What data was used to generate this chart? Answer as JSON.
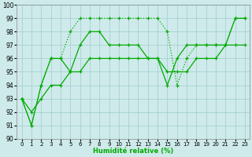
{
  "xlabel": "Humidité relative (%)",
  "xlim": [
    -0.5,
    23.5
  ],
  "ylim": [
    90,
    100
  ],
  "yticks": [
    90,
    91,
    92,
    93,
    94,
    95,
    96,
    97,
    98,
    99,
    100
  ],
  "xticks": [
    0,
    1,
    2,
    3,
    4,
    5,
    6,
    7,
    8,
    9,
    10,
    11,
    12,
    13,
    14,
    15,
    16,
    17,
    18,
    19,
    20,
    21,
    22,
    23
  ],
  "bg_color": "#ceeaea",
  "grid_color": "#a0cccc",
  "line_color": "#00aa00",
  "line1_dotted": {
    "x": [
      0,
      1,
      2,
      3,
      4,
      5,
      6,
      7,
      8,
      9,
      10,
      11,
      12,
      13,
      14,
      15,
      16,
      17,
      18,
      19,
      20,
      21,
      22,
      23
    ],
    "y": [
      93,
      91,
      94,
      96,
      96,
      98,
      99,
      99,
      99,
      99,
      99,
      99,
      99,
      99,
      99,
      98,
      94,
      96,
      97,
      97,
      97,
      97,
      99,
      99
    ]
  },
  "line2_solid": {
    "x": [
      0,
      1,
      2,
      3,
      4,
      5,
      6,
      7,
      8,
      9,
      10,
      11,
      12,
      13,
      14,
      15,
      16,
      17,
      18,
      19,
      20,
      21,
      22,
      23
    ],
    "y": [
      93,
      91,
      94,
      96,
      96,
      95,
      97,
      98,
      98,
      97,
      97,
      97,
      97,
      96,
      96,
      94,
      96,
      97,
      97,
      97,
      97,
      97,
      99,
      99
    ]
  },
  "line3_solid": {
    "x": [
      0,
      1,
      2,
      3,
      4,
      5,
      6,
      7,
      8,
      9,
      10,
      11,
      12,
      13,
      14,
      15,
      16,
      17,
      18,
      19,
      20,
      21,
      22,
      23
    ],
    "y": [
      93,
      92,
      93,
      94,
      94,
      95,
      95,
      96,
      96,
      96,
      96,
      96,
      96,
      96,
      96,
      95,
      95,
      95,
      96,
      96,
      96,
      97,
      97,
      97
    ]
  }
}
